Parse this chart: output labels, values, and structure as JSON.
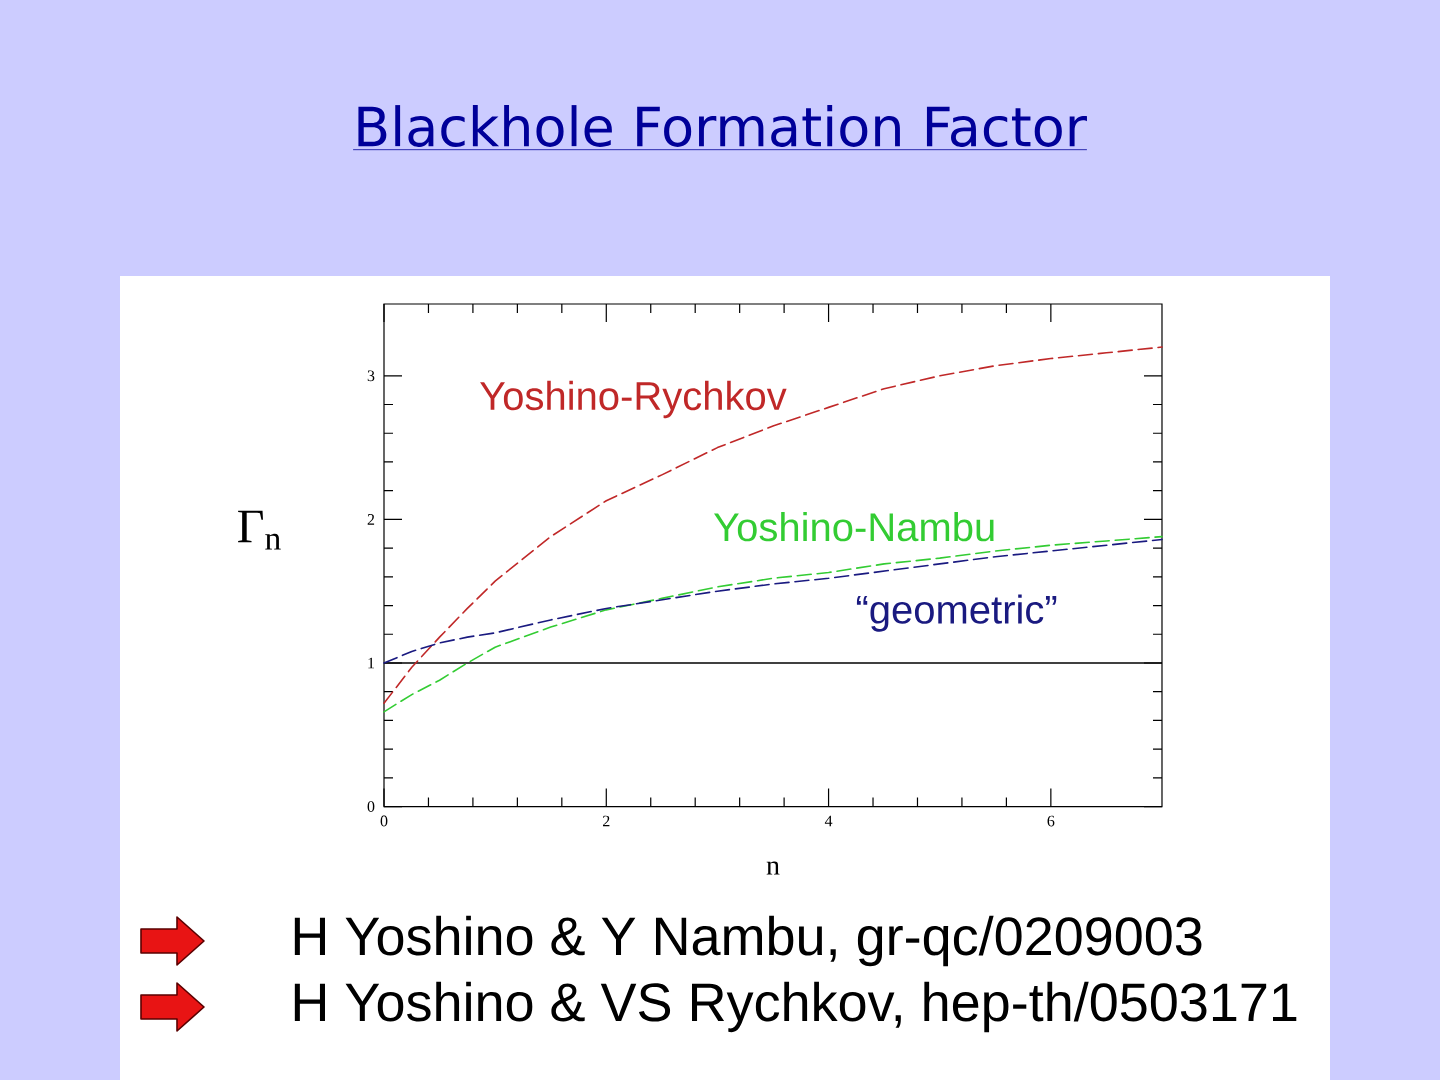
{
  "chart_data": {
    "type": "line",
    "title": "Blackhole Formation Factor",
    "xlabel": "n",
    "ylabel": "Γ$_{n}$",
    "x": [
      0,
      0.25,
      0.5,
      0.75,
      1,
      1.5,
      2,
      2.5,
      3,
      3.5,
      4,
      4.5,
      5,
      5.5,
      6,
      6.5,
      7
    ],
    "series": [
      {
        "name": "Yoshino-Rychkov",
        "color": "#c02828",
        "values": [
          0.72,
          0.97,
          1.18,
          1.38,
          1.57,
          1.88,
          2.13,
          2.31,
          2.5,
          2.65,
          2.78,
          2.91,
          3.0,
          3.07,
          3.12,
          3.16,
          3.2
        ]
      },
      {
        "name": "Yoshino-Nambu",
        "color": "#33cc33",
        "values": [
          0.66,
          0.78,
          0.88,
          1.0,
          1.11,
          1.25,
          1.37,
          1.45,
          1.53,
          1.59,
          1.63,
          1.69,
          1.73,
          1.78,
          1.82,
          1.85,
          1.88
        ]
      },
      {
        "name": "“geometric”",
        "color": "#1a1a80",
        "values": [
          1.0,
          1.08,
          1.14,
          1.18,
          1.21,
          1.3,
          1.38,
          1.44,
          1.5,
          1.55,
          1.59,
          1.64,
          1.69,
          1.74,
          1.78,
          1.82,
          1.86
        ]
      }
    ],
    "xlim": [
      0,
      7
    ],
    "ylim": [
      0,
      3.5
    ],
    "xticks": [
      0,
      2,
      4,
      6
    ],
    "yticks": [
      0,
      1,
      2,
      3
    ],
    "line_style": "dashed",
    "marker": "none",
    "ref_lines": [
      {
        "axis": "y",
        "value": 1,
        "color": "#000000",
        "line_style": "solid"
      }
    ],
    "annotations": [
      "H Yoshino & Y Nambu, gr-qc/0209003",
      "H Yoshino & VS Rychkov, hep-th/0503171"
    ]
  }
}
